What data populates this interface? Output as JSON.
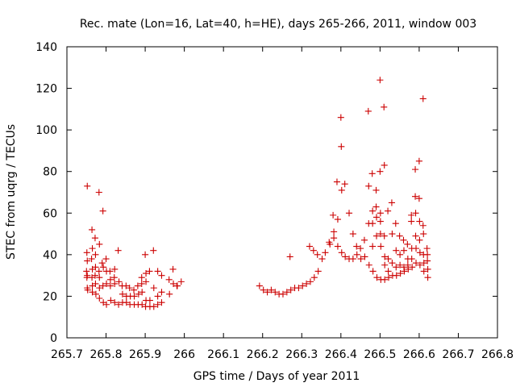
{
  "chart_data": {
    "type": "scatter",
    "title": "Rec. mate (Lon=16, Lat=40, h=HE), days 265-266, 2011, window 003",
    "xlabel": "GPS time / Days of year 2011",
    "ylabel": "STEC from uqrg / TECUs",
    "xlim": [
      265.7,
      266.8
    ],
    "ylim": [
      0,
      140
    ],
    "x_ticks": [
      265.7,
      265.8,
      265.9,
      266.0,
      266.1,
      266.2,
      266.3,
      266.4,
      266.5,
      266.6,
      266.7,
      266.8
    ],
    "x_tick_labels": [
      "265.7",
      "265.8",
      "265.9",
      "266",
      "266.1",
      "266.2",
      "266.3",
      "266.4",
      "266.5",
      "266.6",
      "266.7",
      "266.8"
    ],
    "y_ticks": [
      0,
      20,
      40,
      60,
      80,
      100,
      120,
      140
    ],
    "y_tick_labels": [
      "0",
      "20",
      "40",
      "60",
      "80",
      "100",
      "120",
      "140"
    ],
    "marker": "+",
    "color": "#cc0000",
    "series": [
      {
        "points": [
          [
            265.752,
            73
          ],
          [
            265.751,
            41
          ],
          [
            265.752,
            37
          ],
          [
            265.75,
            32
          ],
          [
            265.752,
            30
          ],
          [
            265.751,
            29
          ],
          [
            265.752,
            24
          ],
          [
            265.753,
            23
          ],
          [
            265.764,
            52
          ],
          [
            265.765,
            43
          ],
          [
            265.763,
            38
          ],
          [
            265.765,
            33
          ],
          [
            265.764,
            29
          ],
          [
            265.765,
            25
          ],
          [
            265.765,
            22
          ],
          [
            265.772,
            48
          ],
          [
            265.773,
            40
          ],
          [
            265.773,
            34
          ],
          [
            265.772,
            30
          ],
          [
            265.773,
            26
          ],
          [
            265.774,
            21
          ],
          [
            265.782,
            70
          ],
          [
            265.783,
            45
          ],
          [
            265.782,
            32
          ],
          [
            265.783,
            29
          ],
          [
            265.783,
            24
          ],
          [
            265.783,
            19
          ],
          [
            265.792,
            61
          ],
          [
            265.79,
            36
          ],
          [
            265.793,
            34
          ],
          [
            265.792,
            25
          ],
          [
            265.793,
            17
          ],
          [
            265.8,
            38
          ],
          [
            265.801,
            32
          ],
          [
            265.801,
            26
          ],
          [
            265.801,
            16
          ],
          [
            265.81,
            32
          ],
          [
            265.811,
            28
          ],
          [
            265.811,
            25
          ],
          [
            265.812,
            18
          ],
          [
            265.822,
            33
          ],
          [
            265.821,
            29
          ],
          [
            265.822,
            26
          ],
          [
            265.822,
            17
          ],
          [
            265.831,
            42
          ],
          [
            265.833,
            27
          ],
          [
            265.832,
            16
          ],
          [
            265.841,
            25
          ],
          [
            265.842,
            21
          ],
          [
            265.842,
            17
          ],
          [
            265.851,
            25
          ],
          [
            265.852,
            20
          ],
          [
            265.852,
            17
          ],
          [
            265.86,
            24
          ],
          [
            265.862,
            20
          ],
          [
            265.861,
            16
          ],
          [
            265.871,
            23
          ],
          [
            265.872,
            20
          ],
          [
            265.872,
            16
          ],
          [
            265.881,
            25
          ],
          [
            265.883,
            21
          ],
          [
            265.882,
            16
          ],
          [
            265.891,
            29
          ],
          [
            265.891,
            26
          ],
          [
            265.892,
            22
          ],
          [
            265.892,
            16
          ],
          [
            265.9,
            40
          ],
          [
            265.902,
            31
          ],
          [
            265.902,
            27
          ],
          [
            265.902,
            18
          ],
          [
            265.901,
            15
          ],
          [
            265.911,
            32
          ],
          [
            265.912,
            18
          ],
          [
            265.912,
            15
          ],
          [
            265.921,
            42
          ],
          [
            265.922,
            24
          ],
          [
            265.922,
            15
          ],
          [
            265.932,
            32
          ],
          [
            265.932,
            20
          ],
          [
            265.932,
            16
          ],
          [
            265.942,
            30
          ],
          [
            265.942,
            22
          ],
          [
            265.942,
            17
          ],
          [
            265.961,
            28
          ],
          [
            265.962,
            21
          ],
          [
            265.971,
            33
          ],
          [
            265.972,
            26
          ],
          [
            265.981,
            25
          ],
          [
            265.982,
            25
          ],
          [
            265.992,
            27
          ],
          [
            266.192,
            25
          ],
          [
            266.202,
            23
          ],
          [
            266.212,
            22
          ],
          [
            266.222,
            23
          ],
          [
            266.232,
            22
          ],
          [
            266.242,
            21
          ],
          [
            266.252,
            21
          ],
          [
            266.262,
            22
          ],
          [
            266.27,
            39
          ],
          [
            266.272,
            23
          ],
          [
            266.282,
            24
          ],
          [
            266.292,
            24
          ],
          [
            266.302,
            25
          ],
          [
            266.312,
            26
          ],
          [
            266.32,
            44
          ],
          [
            266.322,
            27
          ],
          [
            266.33,
            42
          ],
          [
            266.332,
            29
          ],
          [
            266.34,
            40
          ],
          [
            266.342,
            32
          ],
          [
            266.352,
            38
          ],
          [
            266.36,
            41
          ],
          [
            266.37,
            46
          ],
          [
            266.372,
            45
          ],
          [
            266.38,
            59
          ],
          [
            266.382,
            51
          ],
          [
            266.382,
            48
          ],
          [
            266.39,
            75
          ],
          [
            266.392,
            57
          ],
          [
            266.392,
            44
          ],
          [
            266.4,
            106
          ],
          [
            266.401,
            92
          ],
          [
            266.402,
            71
          ],
          [
            266.402,
            41
          ],
          [
            266.41,
            74
          ],
          [
            266.411,
            39
          ],
          [
            266.421,
            60
          ],
          [
            266.421,
            38
          ],
          [
            266.431,
            50
          ],
          [
            266.431,
            38
          ],
          [
            266.44,
            44
          ],
          [
            266.441,
            40
          ],
          [
            266.45,
            43
          ],
          [
            266.451,
            38
          ],
          [
            266.46,
            47
          ],
          [
            266.461,
            39
          ],
          [
            266.47,
            109
          ],
          [
            266.471,
            73
          ],
          [
            266.471,
            55
          ],
          [
            266.472,
            35
          ],
          [
            266.48,
            79
          ],
          [
            266.481,
            61
          ],
          [
            266.481,
            55
          ],
          [
            266.481,
            44
          ],
          [
            266.482,
            32
          ],
          [
            266.49,
            71
          ],
          [
            266.49,
            63
          ],
          [
            266.491,
            58
          ],
          [
            266.491,
            49
          ],
          [
            266.492,
            29
          ],
          [
            266.5,
            124
          ],
          [
            266.5,
            80
          ],
          [
            266.501,
            60
          ],
          [
            266.501,
            56
          ],
          [
            266.501,
            50
          ],
          [
            266.502,
            44
          ],
          [
            266.502,
            28
          ],
          [
            266.51,
            111
          ],
          [
            266.511,
            83
          ],
          [
            266.511,
            49
          ],
          [
            266.512,
            39
          ],
          [
            266.512,
            35
          ],
          [
            266.512,
            28
          ],
          [
            266.52,
            61
          ],
          [
            266.521,
            38
          ],
          [
            266.521,
            32
          ],
          [
            266.522,
            29
          ],
          [
            266.53,
            65
          ],
          [
            266.531,
            50
          ],
          [
            266.531,
            36
          ],
          [
            266.532,
            30
          ],
          [
            266.54,
            55
          ],
          [
            266.541,
            42
          ],
          [
            266.541,
            34
          ],
          [
            266.542,
            30
          ],
          [
            266.55,
            49
          ],
          [
            266.551,
            40
          ],
          [
            266.551,
            35
          ],
          [
            266.552,
            31
          ],
          [
            266.56,
            47
          ],
          [
            266.561,
            42
          ],
          [
            266.561,
            34
          ],
          [
            266.562,
            32
          ],
          [
            266.57,
            45
          ],
          [
            266.571,
            38
          ],
          [
            266.571,
            35
          ],
          [
            266.572,
            33
          ],
          [
            266.58,
            59
          ],
          [
            266.58,
            56
          ],
          [
            266.581,
            43
          ],
          [
            266.581,
            38
          ],
          [
            266.582,
            34
          ],
          [
            266.59,
            81
          ],
          [
            266.59,
            68
          ],
          [
            266.591,
            60
          ],
          [
            266.591,
            49
          ],
          [
            266.592,
            43
          ],
          [
            266.592,
            36
          ],
          [
            266.6,
            85
          ],
          [
            266.6,
            67
          ],
          [
            266.601,
            56
          ],
          [
            266.601,
            47
          ],
          [
            266.602,
            41
          ],
          [
            266.602,
            35
          ],
          [
            266.61,
            115
          ],
          [
            266.61,
            54
          ],
          [
            266.611,
            50
          ],
          [
            266.611,
            40
          ],
          [
            266.612,
            36
          ],
          [
            266.612,
            32
          ],
          [
            266.62,
            43
          ],
          [
            266.621,
            40
          ],
          [
            266.621,
            37
          ],
          [
            266.622,
            33
          ],
          [
            266.622,
            29
          ]
        ]
      }
    ]
  }
}
